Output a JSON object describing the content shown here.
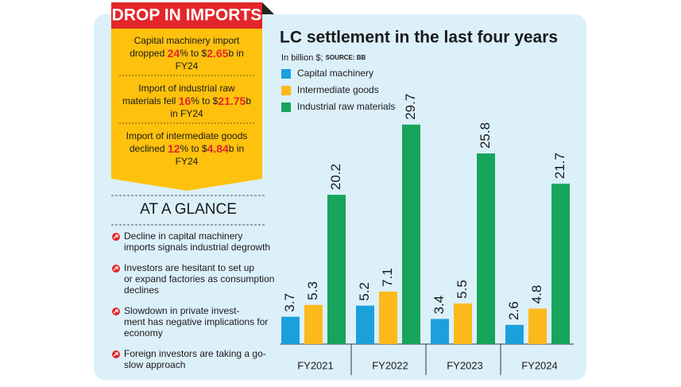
{
  "banner": "DROP IN IMPORTS",
  "highlights": [
    {
      "segments": [
        "Capital machinery import",
        "dropped ",
        "24",
        "% to $",
        "2.65",
        "b in",
        "FY24"
      ]
    },
    {
      "segments": [
        "Import of industrial raw",
        "materials fell ",
        "16",
        "% to $",
        "21.75",
        "b",
        "in FY24"
      ]
    },
    {
      "segments": [
        "Import of intermediate goods",
        "declined ",
        "12",
        "% to $",
        "4.84",
        "b in",
        "FY24"
      ]
    }
  ],
  "glance": {
    "title": "AT A GLANCE",
    "items": [
      [
        "Decline in capital machinery",
        "imports signals industrial degrowth"
      ],
      [
        "Investors are hesitant to set up",
        "or expand factories as consumption",
        "declines"
      ],
      [
        "Slowdown in private invest-",
        "ment has negative implications for",
        "economy"
      ],
      [
        "Foreign investors are taking a go-",
        "slow approach"
      ]
    ]
  },
  "chart_data": {
    "type": "bar",
    "title": "LC settlement in the last four years",
    "subtitle": "In billion $;",
    "source": "SOURCE: BB",
    "categories": [
      "FY2021",
      "FY2022",
      "FY2023",
      "FY2024"
    ],
    "series": [
      {
        "name": "Capital machinery",
        "color": "#1ba0dc",
        "values": [
          3.7,
          5.2,
          3.4,
          2.6
        ]
      },
      {
        "name": "Intermediate goods",
        "color": "#fbb91b",
        "values": [
          5.3,
          7.1,
          5.5,
          4.8
        ]
      },
      {
        "name": "Industrial raw materials",
        "color": "#16a55b",
        "values": [
          20.2,
          29.7,
          25.8,
          21.7
        ]
      }
    ]
  }
}
